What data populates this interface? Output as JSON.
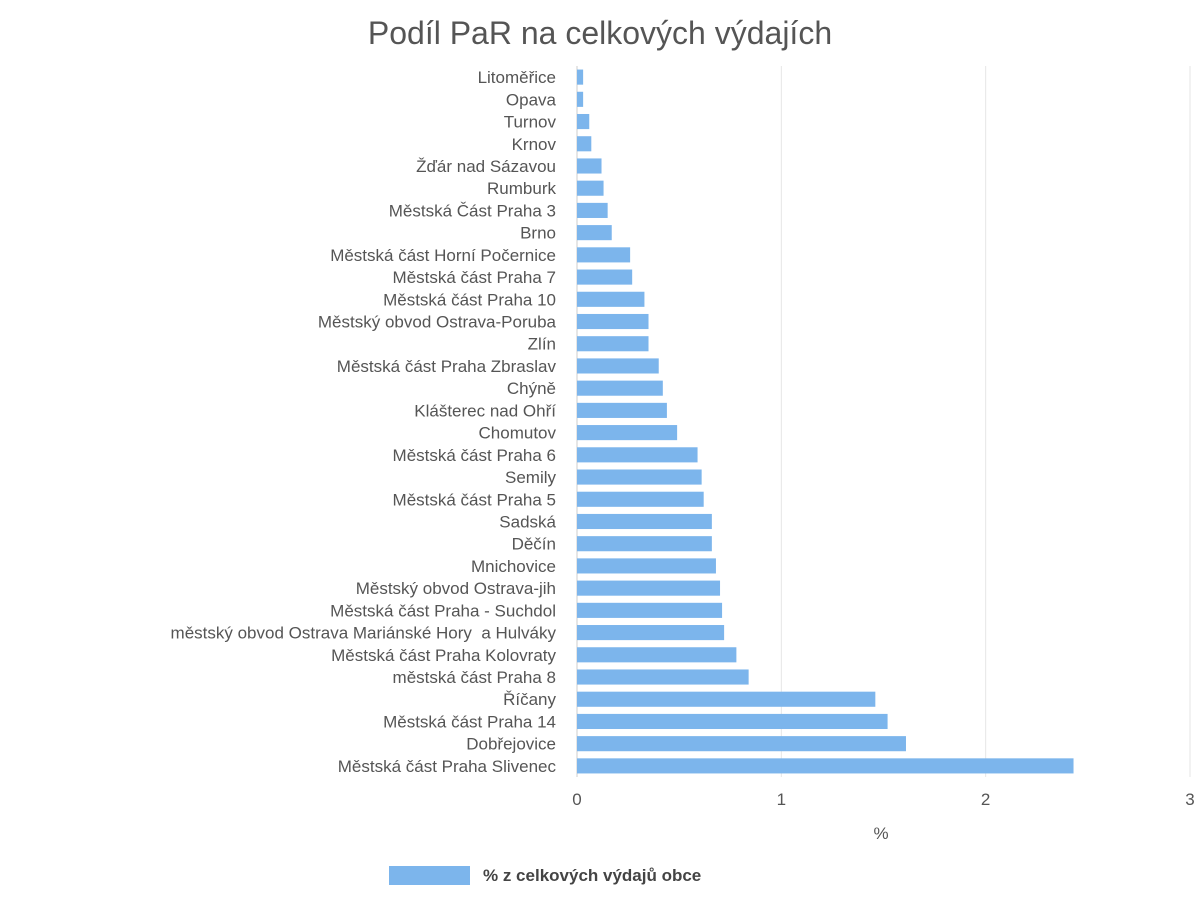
{
  "chart_data": {
    "type": "bar",
    "orientation": "horizontal",
    "title": "Podíl PaR na celkových výdajích",
    "xlabel": "%",
    "ylabel": "",
    "xlim": [
      0,
      3
    ],
    "x_ticks": [
      "0",
      "1",
      "2",
      "3"
    ],
    "grid": true,
    "legend_position": "bottom",
    "color": "#7cb5ec",
    "categories": [
      "Litoměřice",
      "Opava",
      "Turnov",
      "Krnov",
      "Žďár nad Sázavou",
      "Rumburk",
      "Městská Část Praha 3",
      "Brno",
      "Městská část Horní Počernice",
      "Městská část Praha 7",
      "Městská část Praha 10",
      "Městský obvod Ostrava-Poruba",
      "Zlín",
      "Městská část Praha Zbraslav",
      "Chýně",
      "Klášterec nad Ohří",
      "Chomutov",
      "Městská část Praha 6",
      "Semily",
      "Městská část Praha 5",
      "Sadská",
      "Děčín",
      "Mnichovice",
      "Městský obvod Ostrava-jih",
      "Městská část Praha - Suchdol",
      "městský obvod Ostrava Mariánské Hory  a Hulváky",
      "Městská část Praha Kolovraty",
      "městská část Praha 8",
      "Říčany",
      "Městská část Praha 14",
      "Dobřejovice",
      "Městská část Praha Slivenec"
    ],
    "series": [
      {
        "name": "% z celkových výdajů obce",
        "values": [
          0.03,
          0.03,
          0.06,
          0.07,
          0.12,
          0.13,
          0.15,
          0.17,
          0.26,
          0.27,
          0.33,
          0.35,
          0.35,
          0.4,
          0.42,
          0.44,
          0.49,
          0.59,
          0.61,
          0.62,
          0.66,
          0.66,
          0.68,
          0.7,
          0.71,
          0.72,
          0.78,
          0.84,
          1.46,
          1.52,
          1.61,
          2.43
        ]
      }
    ]
  }
}
